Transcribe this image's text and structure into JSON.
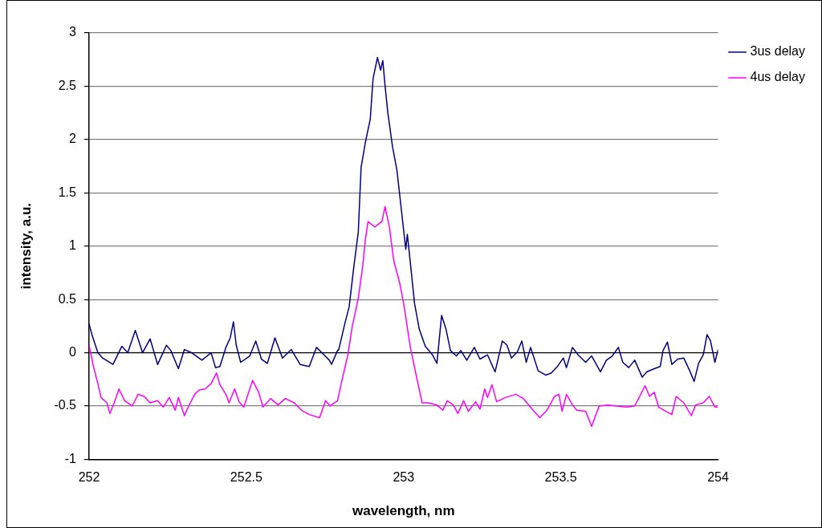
{
  "chart_data": {
    "type": "line",
    "xlabel": "wavelength, nm",
    "ylabel": "intensity, a.u.",
    "xlim": [
      252,
      254
    ],
    "ylim": [
      -1,
      3
    ],
    "xticks": [
      252,
      252.5,
      253,
      253.5,
      254
    ],
    "yticks": [
      -1,
      -0.5,
      0,
      0.5,
      1,
      1.5,
      2,
      2.5,
      3
    ],
    "grid": "y",
    "legend": "right",
    "marker": "none",
    "line_style": "solid",
    "series": [
      {
        "name": "3us delay",
        "color": "#000080",
        "x": [
          252.0,
          252.009,
          252.028,
          252.043,
          252.076,
          252.104,
          252.123,
          252.147,
          252.17,
          252.194,
          252.218,
          252.246,
          252.26,
          252.284,
          252.303,
          252.326,
          252.359,
          252.388,
          252.402,
          252.416,
          252.435,
          252.449,
          252.459,
          252.468,
          252.482,
          252.511,
          252.53,
          252.548,
          252.567,
          252.591,
          252.615,
          252.643,
          252.671,
          252.7,
          252.723,
          252.747,
          252.764,
          252.771,
          252.79,
          252.794,
          252.813,
          252.827,
          252.842,
          252.856,
          252.865,
          252.879,
          252.894,
          252.903,
          252.917,
          252.927,
          252.934,
          252.941,
          252.95,
          252.965,
          252.979,
          252.993,
          253.007,
          253.012,
          253.021,
          253.035,
          253.05,
          253.069,
          253.092,
          253.106,
          253.121,
          253.135,
          253.149,
          253.168,
          253.182,
          253.201,
          253.225,
          253.243,
          253.267,
          253.291,
          253.314,
          253.329,
          253.343,
          253.362,
          253.376,
          253.39,
          253.404,
          253.428,
          253.452,
          253.47,
          253.489,
          253.508,
          253.518,
          253.537,
          253.555,
          253.579,
          253.598,
          253.626,
          253.645,
          253.664,
          253.683,
          253.697,
          253.716,
          253.735,
          253.759,
          253.773,
          253.797,
          253.816,
          253.825,
          253.839,
          253.853,
          253.872,
          253.891,
          253.91,
          253.924,
          253.938,
          253.953,
          253.965,
          253.976,
          253.99,
          254.0
        ],
        "values": [
          0.27,
          0.17,
          0,
          -0.05,
          -0.11,
          0.06,
          0,
          0.21,
          0,
          0.13,
          -0.11,
          0.07,
          0.02,
          -0.15,
          0.03,
          0,
          -0.07,
          0,
          -0.14,
          -0.13,
          0.05,
          0.14,
          0.29,
          0.07,
          -0.09,
          -0.03,
          0.11,
          -0.06,
          -0.1,
          0.14,
          -0.05,
          0.03,
          -0.11,
          -0.13,
          0.05,
          -0.02,
          -0.07,
          -0.11,
          0.02,
          0.03,
          0.27,
          0.43,
          0.81,
          1.13,
          1.74,
          1.98,
          2.19,
          2.57,
          2.77,
          2.65,
          2.74,
          2.51,
          2.25,
          1.93,
          1.71,
          1.34,
          0.97,
          1.11,
          0.86,
          0.46,
          0.22,
          0.06,
          -0.02,
          -0.1,
          0.35,
          0.22,
          0.02,
          -0.03,
          0.02,
          -0.07,
          0.05,
          -0.06,
          -0.02,
          -0.18,
          0.11,
          0.07,
          -0.05,
          0.01,
          0.11,
          -0.09,
          0.05,
          -0.17,
          -0.21,
          -0.19,
          -0.13,
          -0.05,
          -0.14,
          0.05,
          -0.02,
          -0.09,
          -0.03,
          -0.18,
          -0.07,
          -0.03,
          0.05,
          -0.09,
          -0.14,
          -0.07,
          -0.23,
          -0.18,
          -0.15,
          -0.13,
          0.02,
          0.1,
          -0.11,
          -0.06,
          -0.05,
          -0.17,
          -0.27,
          -0.1,
          -0.02,
          0.17,
          0.11,
          -0.09,
          0.03
        ]
      },
      {
        "name": "4us delay",
        "color": "#ff00ff",
        "x": [
          252.0,
          252.014,
          252.028,
          252.038,
          252.057,
          252.066,
          252.08,
          252.095,
          252.113,
          252.137,
          252.156,
          252.175,
          252.194,
          252.218,
          252.236,
          252.255,
          252.274,
          252.284,
          252.303,
          252.317,
          252.336,
          252.35,
          252.369,
          252.388,
          252.405,
          252.416,
          252.435,
          252.445,
          252.463,
          252.477,
          252.492,
          252.52,
          252.539,
          252.553,
          252.577,
          252.601,
          252.624,
          252.652,
          252.676,
          252.7,
          252.733,
          252.752,
          252.766,
          252.79,
          252.804,
          252.823,
          252.837,
          252.856,
          252.87,
          252.879,
          252.887,
          252.908,
          252.931,
          252.941,
          252.955,
          252.969,
          252.988,
          253.002,
          253.021,
          253.04,
          253.059,
          253.078,
          253.106,
          253.125,
          253.139,
          253.158,
          253.173,
          253.191,
          253.206,
          253.229,
          253.243,
          253.258,
          253.267,
          253.281,
          253.296,
          253.324,
          253.357,
          253.381,
          253.409,
          253.433,
          253.456,
          253.48,
          253.494,
          253.504,
          253.518,
          253.537,
          253.551,
          253.579,
          253.598,
          253.622,
          253.65,
          253.678,
          253.707,
          253.735,
          253.749,
          253.768,
          253.782,
          253.797,
          253.811,
          253.834,
          253.853,
          253.867,
          253.891,
          253.915,
          253.929,
          253.953,
          253.972,
          253.99,
          254.0
        ],
        "values": [
          0.07,
          -0.13,
          -0.29,
          -0.42,
          -0.47,
          -0.57,
          -0.47,
          -0.34,
          -0.45,
          -0.5,
          -0.39,
          -0.41,
          -0.47,
          -0.45,
          -0.51,
          -0.42,
          -0.54,
          -0.42,
          -0.59,
          -0.5,
          -0.39,
          -0.35,
          -0.34,
          -0.29,
          -0.19,
          -0.3,
          -0.39,
          -0.47,
          -0.34,
          -0.46,
          -0.51,
          -0.26,
          -0.37,
          -0.51,
          -0.43,
          -0.49,
          -0.43,
          -0.47,
          -0.54,
          -0.58,
          -0.61,
          -0.45,
          -0.5,
          -0.45,
          -0.26,
          -0.02,
          0.25,
          0.51,
          0.81,
          1.07,
          1.23,
          1.18,
          1.23,
          1.37,
          1.18,
          0.86,
          0.65,
          0.43,
          0.06,
          -0.21,
          -0.47,
          -0.47,
          -0.49,
          -0.54,
          -0.45,
          -0.49,
          -0.57,
          -0.45,
          -0.55,
          -0.46,
          -0.53,
          -0.34,
          -0.42,
          -0.3,
          -0.46,
          -0.42,
          -0.39,
          -0.43,
          -0.53,
          -0.61,
          -0.54,
          -0.41,
          -0.39,
          -0.55,
          -0.39,
          -0.49,
          -0.54,
          -0.55,
          -0.69,
          -0.5,
          -0.49,
          -0.5,
          -0.51,
          -0.5,
          -0.42,
          -0.31,
          -0.41,
          -0.37,
          -0.51,
          -0.55,
          -0.58,
          -0.41,
          -0.47,
          -0.59,
          -0.49,
          -0.47,
          -0.41,
          -0.51,
          -0.51
        ]
      }
    ]
  }
}
